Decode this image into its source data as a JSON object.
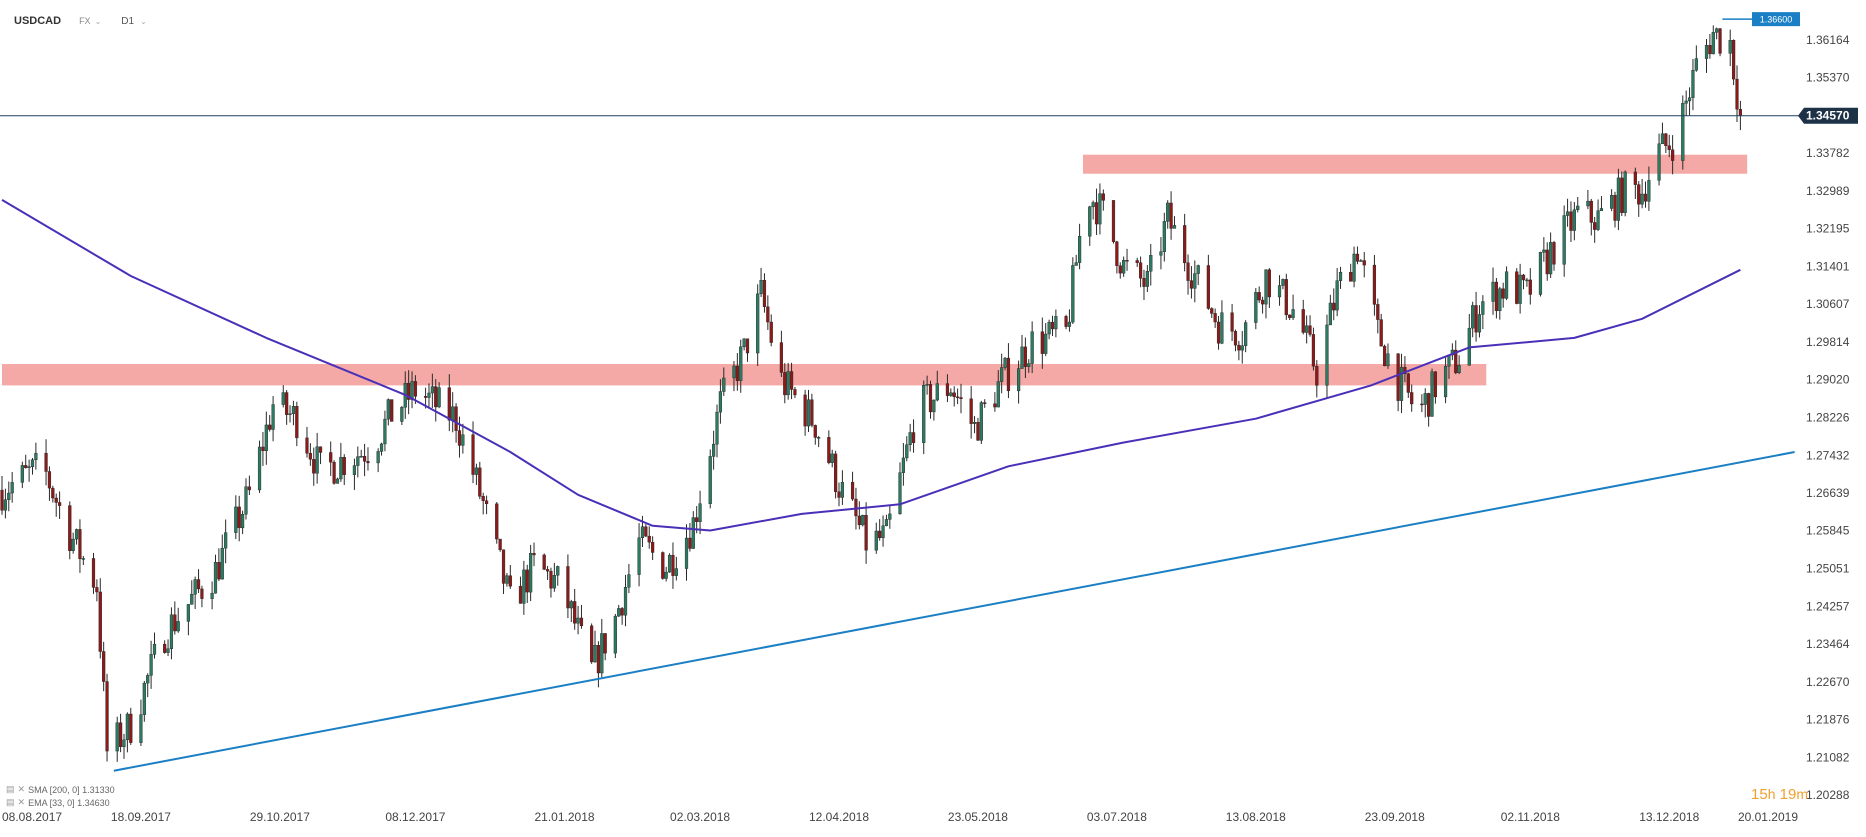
{
  "header": {
    "symbol": "USDCAD",
    "market": "FX",
    "timeframe": "D1",
    "caret": "⌄"
  },
  "indicators": [
    {
      "label": "SMA [200, 0]",
      "value": "1.31330",
      "color": "#4a2fb8"
    },
    {
      "label": "EMA [33, 0]",
      "value": "1.34630",
      "color": "#4a2fb8"
    }
  ],
  "countdown": {
    "hours": "15",
    "h_unit": "h",
    "minutes": "19",
    "m_unit": "m"
  },
  "colors": {
    "up": "#2c7a62",
    "down": "#8b1a1a",
    "wick": "#2a2a2a",
    "zone": "#f4a09c",
    "trendline": "#1a7fc4",
    "sma": "#4a2fb8",
    "price_line": "#1e3f5e"
  },
  "chart_data": {
    "type": "candlestick",
    "title": "USDCAD",
    "x_start": "08.08.2017",
    "x_end": "20.01.2019",
    "x_ticks": [
      "08.08.2017",
      "18.09.2017",
      "29.10.2017",
      "08.12.2017",
      "21.01.2018",
      "02.03.2018",
      "12.04.2018",
      "23.05.2018",
      "03.07.2018",
      "13.08.2018",
      "23.09.2018",
      "02.11.2018",
      "13.12.2018",
      "20.01.2019"
    ],
    "y_ticks": [
      "1.36164",
      "1.35370",
      "1.34570",
      "1.33782",
      "1.32989",
      "1.32195",
      "1.31401",
      "1.30607",
      "1.29814",
      "1.29020",
      "1.28226",
      "1.27432",
      "1.26639",
      "1.25845",
      "1.25051",
      "1.24257",
      "1.23464",
      "1.22670",
      "1.21876",
      "1.21082",
      "1.20288"
    ],
    "ylim": [
      1.2029,
      1.3675
    ],
    "current_price": "1.34570",
    "high_marker": "1.36600",
    "grid": false,
    "price_path": [
      {
        "date": "2017-08-08",
        "close": 1.267
      },
      {
        "date": "2017-08-20",
        "close": 1.272
      },
      {
        "date": "2017-08-28",
        "close": 1.258
      },
      {
        "date": "2017-09-05",
        "close": 1.247
      },
      {
        "date": "2017-09-08",
        "close": 1.212
      },
      {
        "date": "2017-09-15",
        "close": 1.2175
      },
      {
        "date": "2017-09-25",
        "close": 1.237
      },
      {
        "date": "2017-10-10",
        "close": 1.25
      },
      {
        "date": "2017-10-20",
        "close": 1.266
      },
      {
        "date": "2017-10-27",
        "close": 1.285
      },
      {
        "date": "2017-11-03",
        "close": 1.282
      },
      {
        "date": "2017-11-10",
        "close": 1.271
      },
      {
        "date": "2017-11-25",
        "close": 1.276
      },
      {
        "date": "2017-12-01",
        "close": 1.283
      },
      {
        "date": "2017-12-08",
        "close": 1.288
      },
      {
        "date": "2017-12-20",
        "close": 1.282
      },
      {
        "date": "2017-12-28",
        "close": 1.264
      },
      {
        "date": "2018-01-05",
        "close": 1.243
      },
      {
        "date": "2018-01-12",
        "close": 1.251
      },
      {
        "date": "2018-01-20",
        "close": 1.247
      },
      {
        "date": "2018-01-29",
        "close": 1.229
      },
      {
        "date": "2018-02-05",
        "close": 1.24
      },
      {
        "date": "2018-02-12",
        "close": 1.256
      },
      {
        "date": "2018-02-20",
        "close": 1.251
      },
      {
        "date": "2018-02-28",
        "close": 1.26
      },
      {
        "date": "2018-03-08",
        "close": 1.285
      },
      {
        "date": "2018-03-15",
        "close": 1.296
      },
      {
        "date": "2018-03-20",
        "close": 1.308
      },
      {
        "date": "2018-03-26",
        "close": 1.29
      },
      {
        "date": "2018-04-05",
        "close": 1.281
      },
      {
        "date": "2018-04-12",
        "close": 1.268
      },
      {
        "date": "2018-04-20",
        "close": 1.256
      },
      {
        "date": "2018-04-26",
        "close": 1.257
      },
      {
        "date": "2018-05-05",
        "close": 1.284
      },
      {
        "date": "2018-05-15",
        "close": 1.289
      },
      {
        "date": "2018-05-22",
        "close": 1.28
      },
      {
        "date": "2018-05-30",
        "close": 1.29
      },
      {
        "date": "2018-06-08",
        "close": 1.298
      },
      {
        "date": "2018-06-18",
        "close": 1.3
      },
      {
        "date": "2018-06-24",
        "close": 1.33
      },
      {
        "date": "2018-06-29",
        "close": 1.325
      },
      {
        "date": "2018-07-05",
        "close": 1.314
      },
      {
        "date": "2018-07-12",
        "close": 1.31
      },
      {
        "date": "2018-07-18",
        "close": 1.324
      },
      {
        "date": "2018-07-24",
        "close": 1.315
      },
      {
        "date": "2018-08-02",
        "close": 1.302
      },
      {
        "date": "2018-08-09",
        "close": 1.3
      },
      {
        "date": "2018-08-16",
        "close": 1.312
      },
      {
        "date": "2018-08-25",
        "close": 1.304
      },
      {
        "date": "2018-08-31",
        "close": 1.292
      },
      {
        "date": "2018-09-06",
        "close": 1.309
      },
      {
        "date": "2018-09-12",
        "close": 1.318
      },
      {
        "date": "2018-09-18",
        "close": 1.3
      },
      {
        "date": "2018-09-24",
        "close": 1.29
      },
      {
        "date": "2018-09-30",
        "close": 1.283
      },
      {
        "date": "2018-10-05",
        "close": 1.289
      },
      {
        "date": "2018-10-12",
        "close": 1.295
      },
      {
        "date": "2018-10-18",
        "close": 1.306
      },
      {
        "date": "2018-10-26",
        "close": 1.31
      },
      {
        "date": "2018-11-01",
        "close": 1.308
      },
      {
        "date": "2018-11-08",
        "close": 1.317
      },
      {
        "date": "2018-11-16",
        "close": 1.325
      },
      {
        "date": "2018-11-22",
        "close": 1.324
      },
      {
        "date": "2018-11-30",
        "close": 1.33
      },
      {
        "date": "2018-12-05",
        "close": 1.33
      },
      {
        "date": "2018-12-10",
        "close": 1.338
      },
      {
        "date": "2018-12-15",
        "close": 1.341
      },
      {
        "date": "2018-12-21",
        "close": 1.356
      },
      {
        "date": "2018-12-26",
        "close": 1.363
      },
      {
        "date": "2018-12-31",
        "close": 1.361
      },
      {
        "date": "2019-01-03",
        "close": 1.3457
      }
    ],
    "sma_200": [
      {
        "date": "2017-08-08",
        "value": 1.328
      },
      {
        "date": "2017-09-15",
        "value": 1.312
      },
      {
        "date": "2017-10-25",
        "value": 1.299
      },
      {
        "date": "2017-12-05",
        "value": 1.287
      },
      {
        "date": "2018-01-05",
        "value": 1.275
      },
      {
        "date": "2018-01-25",
        "value": 1.266
      },
      {
        "date": "2018-02-16",
        "value": 1.2595
      },
      {
        "date": "2018-03-05",
        "value": 1.2585
      },
      {
        "date": "2018-04-01",
        "value": 1.262
      },
      {
        "date": "2018-04-30",
        "value": 1.264
      },
      {
        "date": "2018-06-01",
        "value": 1.272
      },
      {
        "date": "2018-07-05",
        "value": 1.277
      },
      {
        "date": "2018-08-13",
        "value": 1.282
      },
      {
        "date": "2018-09-16",
        "value": 1.289
      },
      {
        "date": "2018-10-15",
        "value": 1.297
      },
      {
        "date": "2018-11-15",
        "value": 1.299
      },
      {
        "date": "2018-12-05",
        "value": 1.303
      },
      {
        "date": "2019-01-03",
        "value": 1.3133
      }
    ],
    "zones": [
      {
        "from": "2017-08-08",
        "to": "2018-10-20",
        "low": 1.289,
        "high": 1.2935
      },
      {
        "from": "2018-06-23",
        "to": "2019-01-05",
        "low": 1.3335,
        "high": 1.3375
      }
    ],
    "trendline": [
      {
        "date": "2017-09-10",
        "value": 1.208
      },
      {
        "date": "2019-01-19",
        "value": 1.275
      }
    ]
  }
}
